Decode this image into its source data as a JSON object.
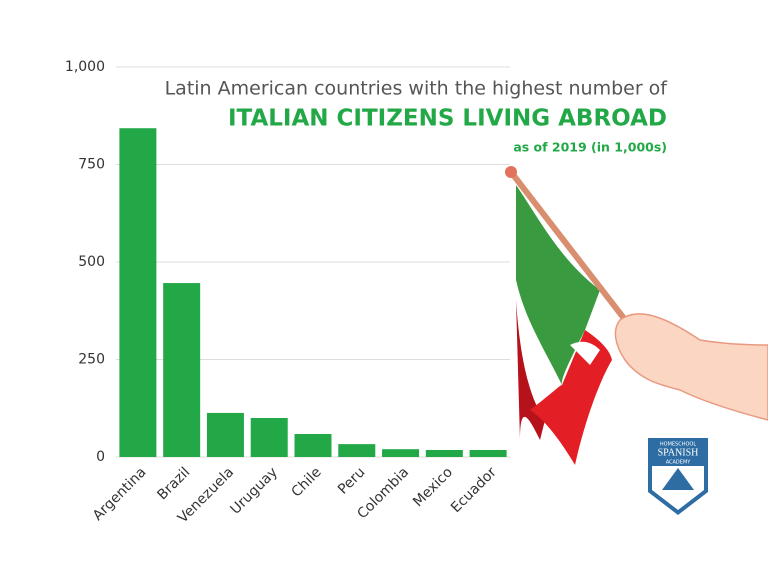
{
  "chart_data": {
    "type": "bar",
    "title": "Latin American countries with the highest number of",
    "subtitle": "ITALIAN CITIZENS LIVING ABROAD",
    "note": "as of 2019 (in 1,000s)",
    "categories": [
      "Argentina",
      "Brazil",
      "Venezuela",
      "Uruguay",
      "Chile",
      "Peru",
      "Colombia",
      "Mexico",
      "Ecuador"
    ],
    "values": [
      843,
      446,
      113,
      100,
      59,
      33,
      20,
      18,
      18
    ],
    "color": "#22a846",
    "ylim": [
      0,
      1000
    ],
    "yticks": [
      0,
      250,
      500,
      750,
      {
        "value": 1000,
        "label": "1,000"
      }
    ],
    "grid": true
  },
  "logo": {
    "top": "HOMESCHOOL",
    "middle": "SPANISH",
    "bottom": "ACADEMY"
  }
}
